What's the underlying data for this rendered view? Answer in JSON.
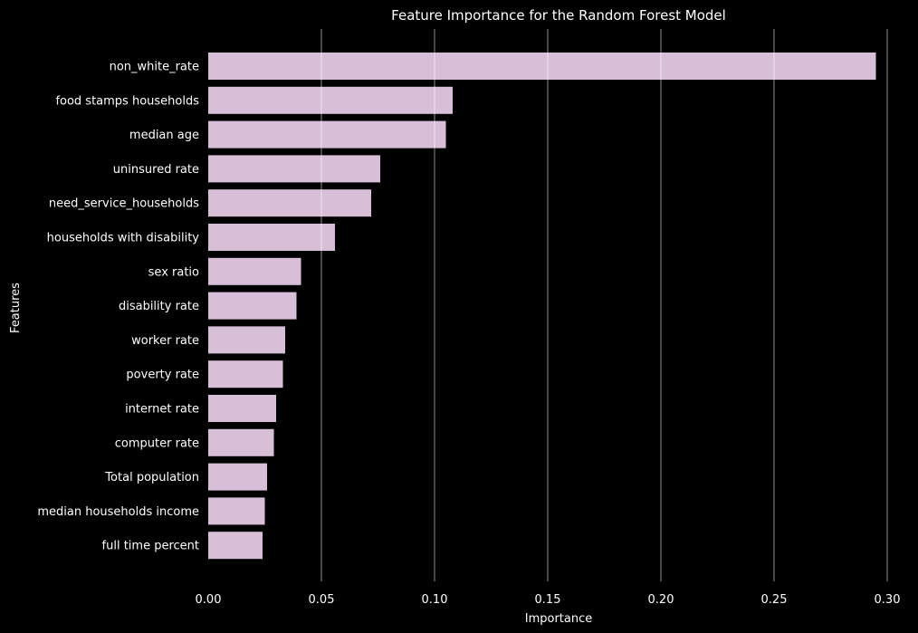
{
  "chart_data": {
    "type": "bar",
    "orientation": "horizontal",
    "title": "Feature Importance for the Random Forest Model",
    "xlabel": "Importance",
    "ylabel": "Features",
    "xlim": [
      0,
      0.3
    ],
    "xticks": [
      "0.00",
      "0.05",
      "0.10",
      "0.15",
      "0.20",
      "0.25",
      "0.30"
    ],
    "xtick_values": [
      0,
      0.05,
      0.1,
      0.15,
      0.2,
      0.25,
      0.3
    ],
    "grid": "vertical",
    "background": "#000000",
    "bar_color": "#d8bfd8",
    "grid_color": "#ffffff",
    "text_color": "#ffffff",
    "categories": [
      "non_white_rate",
      "food stamps households",
      "median age",
      "uninsured rate",
      "need_service_households",
      "households with disability",
      "sex ratio",
      "disability rate",
      "worker rate",
      "poverty rate",
      "internet rate",
      "computer rate",
      "Total population",
      "median households income",
      "full time percent"
    ],
    "values": [
      0.295,
      0.108,
      0.105,
      0.076,
      0.072,
      0.056,
      0.041,
      0.039,
      0.034,
      0.033,
      0.03,
      0.029,
      0.026,
      0.025,
      0.024
    ]
  }
}
